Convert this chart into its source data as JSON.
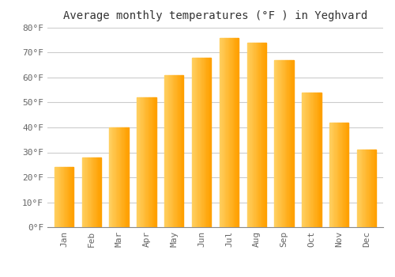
{
  "title": "Average monthly temperatures (°F ) in Yeghvard",
  "months": [
    "Jan",
    "Feb",
    "Mar",
    "Apr",
    "May",
    "Jun",
    "Jul",
    "Aug",
    "Sep",
    "Oct",
    "Nov",
    "Dec"
  ],
  "values": [
    24,
    28,
    40,
    52,
    61,
    68,
    76,
    74,
    67,
    54,
    42,
    31
  ],
  "bar_color_light": "#FFD060",
  "bar_color_dark": "#FFA000",
  "ylim": [
    0,
    80
  ],
  "yticks": [
    0,
    10,
    20,
    30,
    40,
    50,
    60,
    70,
    80
  ],
  "ytick_labels": [
    "0°F",
    "10°F",
    "20°F",
    "30°F",
    "40°F",
    "50°F",
    "60°F",
    "70°F",
    "80°F"
  ],
  "background_color": "#ffffff",
  "plot_bg_color": "#f8f8f8",
  "grid_color": "#cccccc",
  "title_fontsize": 10,
  "tick_fontsize": 8,
  "bar_width": 0.7,
  "font_family": "monospace"
}
